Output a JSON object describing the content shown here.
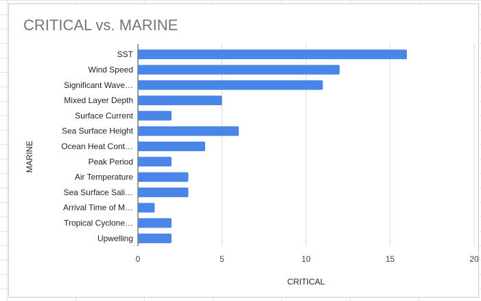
{
  "chart_data": {
    "type": "bar",
    "orientation": "horizontal",
    "title": "CRITICAL vs. MARINE",
    "xlabel": "CRITICAL",
    "ylabel": "MARINE",
    "categories": [
      "SST",
      "Wind Speed",
      "Significant Wave…",
      "Mixed Layer Depth",
      "Surface Current",
      "Sea Surface Height",
      "Ocean Heat Cont…",
      "Peak Period",
      "Air Temperature",
      "Sea Surface Sali…",
      "Arrival Time of M…",
      "Tropical Cyclone…",
      "Upwelling"
    ],
    "values": [
      16,
      12,
      11,
      5,
      2,
      6,
      4,
      2,
      3,
      3,
      1,
      2,
      2
    ],
    "xlim": [
      0,
      20
    ],
    "xticks": [
      "0",
      "5",
      "10",
      "15",
      "20"
    ],
    "grid": true,
    "bar_color": "#4a86e8",
    "grid_color": "#d9d9d9"
  }
}
